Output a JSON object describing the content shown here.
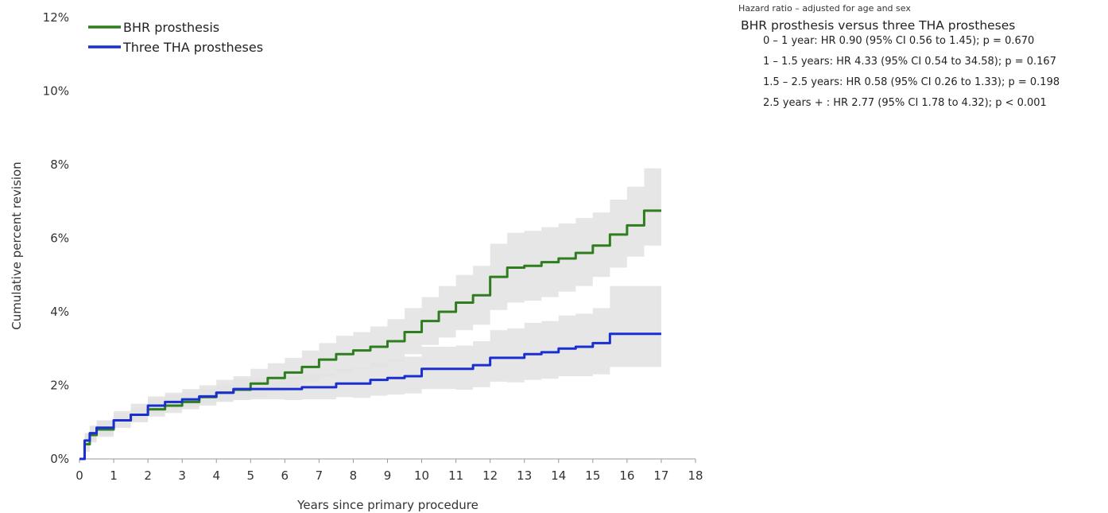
{
  "chart_data": {
    "type": "line",
    "xlabel": "Years since primary procedure",
    "ylabel": "Cumulative percent revision",
    "xlim": [
      0,
      18
    ],
    "ylim": [
      0,
      12
    ],
    "x_ticks": [
      0,
      1,
      2,
      3,
      4,
      5,
      6,
      7,
      8,
      9,
      10,
      11,
      12,
      13,
      14,
      15,
      16,
      17,
      18
    ],
    "y_ticks": [
      0,
      2,
      4,
      6,
      8,
      10,
      12
    ],
    "y_tick_labels": [
      "0%",
      "2%",
      "4%",
      "6%",
      "8%",
      "10%",
      "12%"
    ],
    "legend_position": "top-left",
    "grid": false,
    "series": [
      {
        "name": "BHR prosthesis",
        "color": "#2e7d1e",
        "x": [
          0,
          0.15,
          0.3,
          0.5,
          1,
          1.5,
          2,
          2.5,
          3,
          3.5,
          4,
          4.5,
          5,
          5.5,
          6,
          6.5,
          7,
          7.5,
          8,
          8.5,
          9,
          9.5,
          10,
          10.5,
          11,
          11.5,
          12,
          12.5,
          13,
          13.5,
          14,
          14.5,
          15,
          15.5,
          16,
          16.5,
          17
        ],
        "values": [
          0,
          0.4,
          0.65,
          0.8,
          1.05,
          1.2,
          1.35,
          1.45,
          1.55,
          1.68,
          1.8,
          1.88,
          2.05,
          2.2,
          2.35,
          2.5,
          2.7,
          2.85,
          2.95,
          3.05,
          3.2,
          3.45,
          3.75,
          4.0,
          4.25,
          4.45,
          4.95,
          5.2,
          5.25,
          5.35,
          5.45,
          5.6,
          5.8,
          6.1,
          6.35,
          6.75,
          6.75
        ],
        "ci_lower": [
          0,
          0.2,
          0.45,
          0.6,
          0.85,
          1.0,
          1.15,
          1.25,
          1.35,
          1.45,
          1.55,
          1.6,
          1.7,
          1.82,
          1.95,
          2.08,
          2.25,
          2.35,
          2.45,
          2.5,
          2.65,
          2.85,
          3.1,
          3.3,
          3.5,
          3.65,
          4.05,
          4.25,
          4.3,
          4.4,
          4.55,
          4.7,
          4.95,
          5.2,
          5.5,
          5.8,
          5.8
        ],
        "ci_upper": [
          0,
          0.7,
          0.9,
          1.05,
          1.3,
          1.5,
          1.7,
          1.8,
          1.9,
          2.0,
          2.15,
          2.25,
          2.45,
          2.6,
          2.75,
          2.95,
          3.15,
          3.35,
          3.45,
          3.6,
          3.8,
          4.1,
          4.4,
          4.7,
          5.0,
          5.25,
          5.85,
          6.15,
          6.2,
          6.3,
          6.4,
          6.55,
          6.7,
          7.05,
          7.4,
          7.9,
          7.9
        ]
      },
      {
        "name": "Three THA prostheses",
        "color": "#1a2fd0",
        "x": [
          0,
          0.15,
          0.3,
          0.5,
          1,
          1.5,
          2,
          2.5,
          3,
          3.5,
          4,
          4.5,
          5,
          5.5,
          6,
          6.5,
          7,
          7.5,
          8,
          8.5,
          9,
          9.5,
          10,
          10.5,
          11,
          11.5,
          12,
          12.5,
          13,
          13.5,
          14,
          14.5,
          15,
          15.5,
          16,
          16.5,
          17
        ],
        "values": [
          0,
          0.5,
          0.7,
          0.85,
          1.05,
          1.2,
          1.45,
          1.55,
          1.62,
          1.7,
          1.8,
          1.9,
          1.9,
          1.9,
          1.9,
          1.95,
          1.95,
          2.05,
          2.05,
          2.15,
          2.2,
          2.25,
          2.45,
          2.45,
          2.45,
          2.55,
          2.75,
          2.75,
          2.85,
          2.9,
          3.0,
          3.05,
          3.15,
          3.4,
          3.4,
          3.4,
          3.4
        ],
        "ci_lower": [
          0,
          0.3,
          0.5,
          0.65,
          0.85,
          1.0,
          1.25,
          1.35,
          1.42,
          1.5,
          1.58,
          1.62,
          1.62,
          1.62,
          1.6,
          1.62,
          1.62,
          1.68,
          1.66,
          1.72,
          1.75,
          1.78,
          1.9,
          1.9,
          1.88,
          1.95,
          2.1,
          2.08,
          2.15,
          2.18,
          2.25,
          2.25,
          2.3,
          2.5,
          2.5,
          2.5,
          2.5
        ],
        "ci_upper": [
          0,
          0.7,
          0.9,
          1.05,
          1.25,
          1.4,
          1.65,
          1.75,
          1.82,
          1.9,
          2.02,
          2.18,
          2.2,
          2.22,
          2.25,
          2.3,
          2.32,
          2.45,
          2.48,
          2.62,
          2.7,
          2.78,
          3.05,
          3.05,
          3.08,
          3.2,
          3.5,
          3.55,
          3.7,
          3.75,
          3.9,
          3.95,
          4.1,
          4.7,
          4.7,
          4.7,
          4.7
        ]
      }
    ]
  },
  "hazard_panel": {
    "title": "Hazard ratio – adjusted for age and sex",
    "heading": "BHR prosthesis versus three THA prostheses",
    "rows": [
      "0 – 1 year: HR 0.90 (95% CI 0.56 to 1.45); p = 0.670",
      "1 – 1.5 years: HR 4.33 (95% CI 0.54 to 34.58); p = 0.167",
      "1.5 – 2.5 years: HR 0.58 (95% CI 0.26 to 1.33); p = 0.198",
      "2.5 years + : HR 2.77 (95% CI 1.78 to 4.32); p < 0.001"
    ]
  }
}
